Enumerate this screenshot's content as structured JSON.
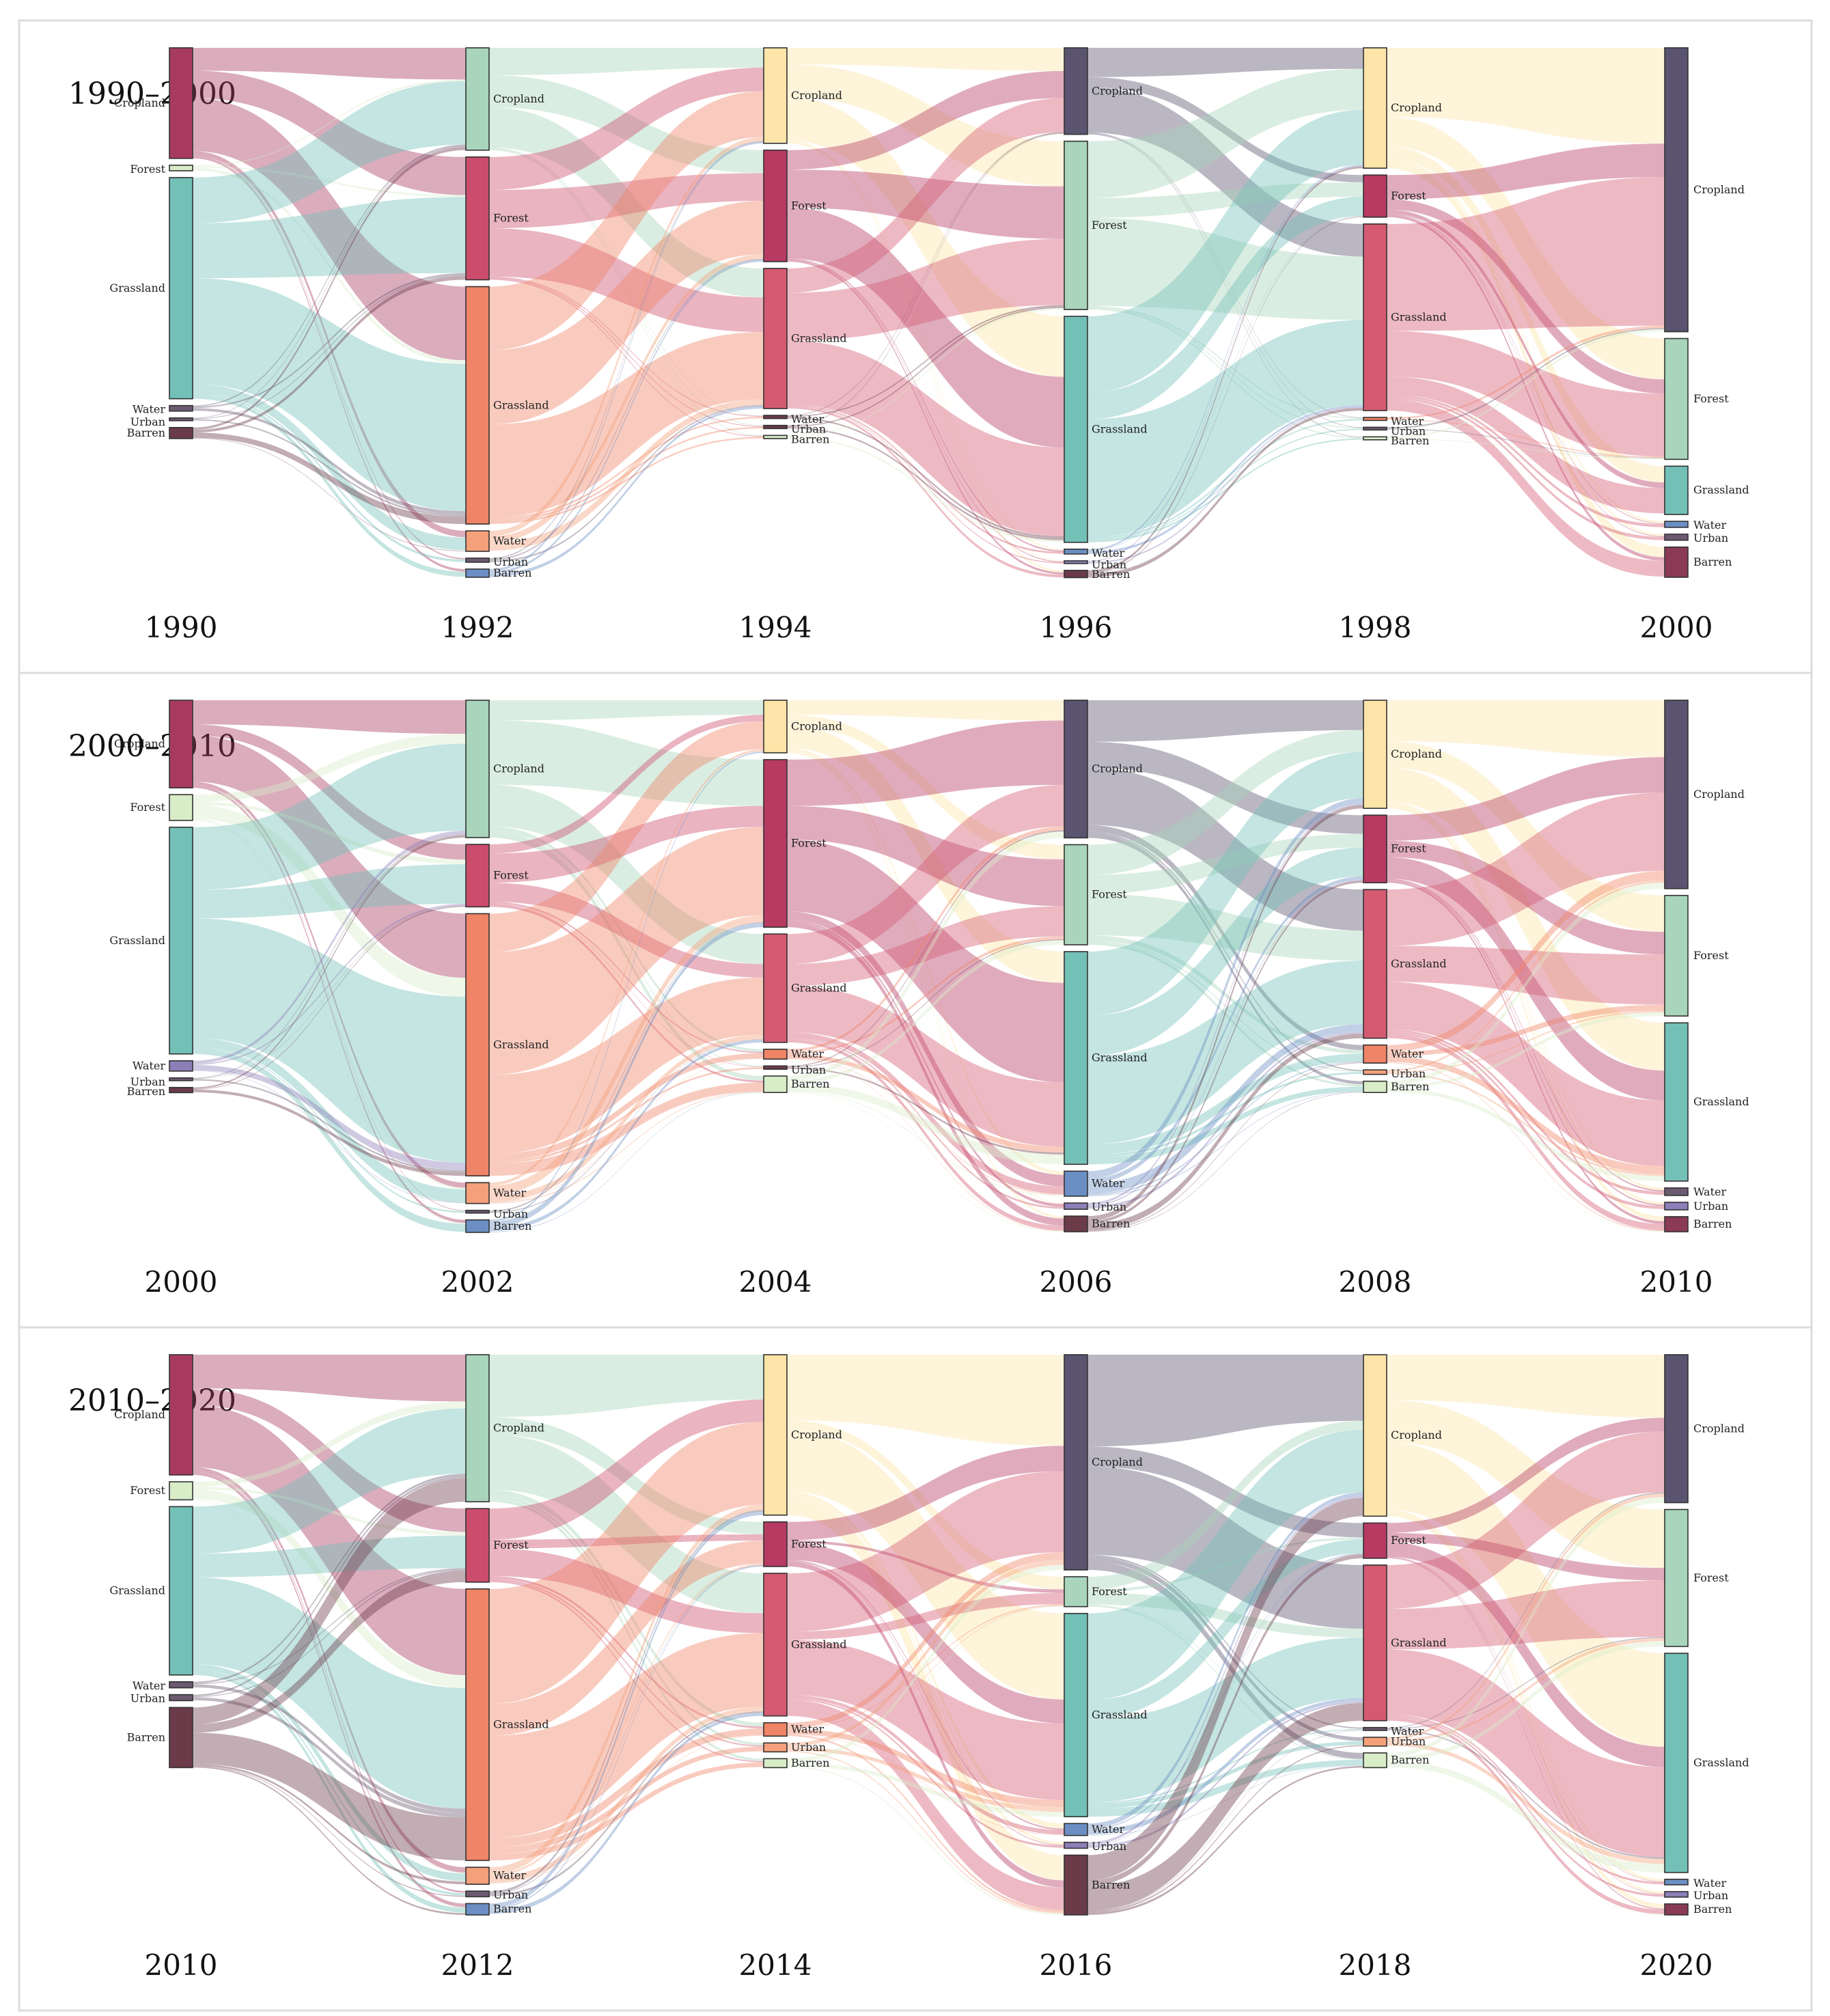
{
  "figure": {
    "description_free": true
  },
  "colors": {
    "Cropland_by_year": [
      "#a83a60",
      "#a8d5bb",
      "#fde4a8",
      "#5a5470",
      "#fde4a8",
      "#5a5470"
    ],
    "Forest": "#a8d5bb",
    "Grassland": "#73c0b7",
    "Water": "#6b8fc4",
    "Urban": "#8c7fb8",
    "Barren": "#6b3b4a",
    "flow_grass": "#f19a82",
    "flow_crop": "#c8506e"
  },
  "chart_data": [
    {
      "type": "sankey",
      "title": "1990–2000",
      "years": [
        "1990",
        "1992",
        "1994",
        "1996",
        "1998",
        "2000"
      ],
      "categories": [
        "Cropland",
        "Forest",
        "Grassland",
        "Water",
        "Urban",
        "Barren"
      ],
      "node_values": [
        [
          20,
          1,
          40,
          1,
          0.5,
          2
        ],
        [
          25,
          30,
          58,
          5,
          1,
          2
        ],
        [
          30,
          35,
          44,
          1,
          1,
          1
        ],
        [
          18,
          35,
          47,
          1,
          0.5,
          1.5
        ],
        [
          40,
          14,
          62,
          1,
          0.5,
          1
        ],
        [
          47,
          20,
          8,
          1,
          1,
          5
        ]
      ],
      "node_colors": [
        [
          "#a83a60",
          "#d8ecc8",
          "#73c0b7",
          "#6b5a70",
          "#6b5a70",
          "#6b3b4a"
        ],
        [
          "#a8d5bb",
          "#cc4c6c",
          "#f08467",
          "#f4a07a",
          "#6b5a70",
          "#6b8fc4"
        ],
        [
          "#fde4a8",
          "#b63a62",
          "#d45a72",
          "#6b3b4a",
          "#6b3b4a",
          "#d8ecc8"
        ],
        [
          "#5a5470",
          "#a8d5bb",
          "#73c0b7",
          "#6b8fc4",
          "#8c7fb8",
          "#6b3b4a"
        ],
        [
          "#fde4a8",
          "#b63a62",
          "#d45a72",
          "#f08467",
          "#6b5a70",
          "#d8ecc8"
        ],
        [
          "#5a5470",
          "#a8d5bb",
          "#73c0b7",
          "#6b8fc4",
          "#6b5a70",
          "#8a3a55"
        ]
      ]
    },
    {
      "type": "sankey",
      "title": "2000–2010",
      "years": [
        "2000",
        "2002",
        "2004",
        "2006",
        "2008",
        "2010"
      ],
      "categories": [
        "Cropland",
        "Forest",
        "Grassland",
        "Water",
        "Urban",
        "Barren"
      ],
      "node_values": [
        [
          17,
          5,
          44,
          2,
          0.5,
          1
        ],
        [
          33,
          15,
          63,
          5,
          0.5,
          3
        ],
        [
          16,
          51,
          33,
          3,
          1,
          5
        ],
        [
          22,
          16,
          34,
          4,
          1,
          2.5
        ],
        [
          24,
          15,
          33,
          4,
          1,
          2.5
        ],
        [
          25,
          16,
          21,
          1,
          1,
          2
        ]
      ],
      "node_colors": [
        [
          "#a83a60",
          "#d8ecc8",
          "#73c0b7",
          "#8c7fb8",
          "#6b5a70",
          "#6b3b4a"
        ],
        [
          "#a8d5bb",
          "#cc4c6c",
          "#f08467",
          "#f4a07a",
          "#6b5a70",
          "#6b8fc4"
        ],
        [
          "#fde4a8",
          "#b63a62",
          "#d45a72",
          "#f08467",
          "#6b3b4a",
          "#d8ecc8"
        ],
        [
          "#5a5470",
          "#a8d5bb",
          "#73c0b7",
          "#6b8fc4",
          "#8c7fb8",
          "#6b3b4a"
        ],
        [
          "#fde4a8",
          "#b63a62",
          "#d45a72",
          "#f08467",
          "#f4a07a",
          "#d8ecc8"
        ],
        [
          "#5a5470",
          "#a8d5bb",
          "#73c0b7",
          "#6b5a70",
          "#8c7fb8",
          "#8a3a55"
        ]
      ]
    },
    {
      "type": "sankey",
      "title": "2010–2020",
      "years": [
        "2010",
        "2012",
        "2014",
        "2016",
        "2018",
        "2020"
      ],
      "categories": [
        "Cropland",
        "Forest",
        "Grassland",
        "Water",
        "Urban",
        "Barren"
      ],
      "node_values": [
        [
          20,
          3,
          28,
          1,
          1,
          10
        ],
        [
          26,
          13,
          48,
          3,
          1,
          2
        ],
        [
          36,
          10,
          32,
          3,
          2,
          2
        ],
        [
          36,
          5,
          34,
          2,
          1,
          10
        ],
        [
          55,
          12,
          53,
          1,
          3,
          5
        ],
        [
          27,
          25,
          40,
          1,
          1,
          2
        ]
      ],
      "node_colors": [
        [
          "#a83a60",
          "#d8ecc8",
          "#73c0b7",
          "#6b5a70",
          "#6b5a70",
          "#6b3b4a"
        ],
        [
          "#a8d5bb",
          "#cc4c6c",
          "#f08467",
          "#f4a07a",
          "#6b5a70",
          "#6b8fc4"
        ],
        [
          "#fde4a8",
          "#b63a62",
          "#d45a72",
          "#f08467",
          "#f4a07a",
          "#d8ecc8"
        ],
        [
          "#5a5470",
          "#a8d5bb",
          "#73c0b7",
          "#6b8fc4",
          "#8c7fb8",
          "#6b3b4a"
        ],
        [
          "#fde4a8",
          "#b63a62",
          "#d45a72",
          "#6b5a70",
          "#f4a07a",
          "#d8ecc8"
        ],
        [
          "#5a5470",
          "#a8d5bb",
          "#73c0b7",
          "#6b8fc4",
          "#8c7fb8",
          "#8a3a55"
        ]
      ]
    }
  ]
}
